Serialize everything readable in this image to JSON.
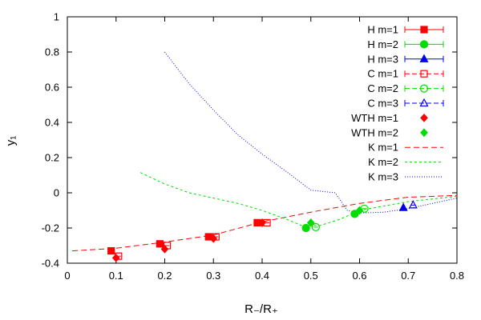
{
  "chart_data": {
    "type": "scatter",
    "title": "",
    "xlabel": "R₋/R₊",
    "ylabel": "y₁",
    "xlim": [
      0,
      0.8
    ],
    "ylim": [
      -0.4,
      1
    ],
    "xticks": [
      "0",
      "0.1",
      "0.2",
      "0.3",
      "0.4",
      "0.5",
      "0.6",
      "0.7",
      "0.8"
    ],
    "xtick_values": [
      0,
      0.1,
      0.2,
      0.3,
      0.4,
      0.5,
      0.6,
      0.7,
      0.8
    ],
    "yticks": [
      "-0.4",
      "-0.2",
      "0",
      "0.2",
      "0.4",
      "0.6",
      "0.8",
      "1"
    ],
    "ytick_values": [
      -0.4,
      -0.2,
      0,
      0.2,
      0.4,
      0.6,
      0.8,
      1
    ],
    "grid": false,
    "legend_position": "top-right",
    "colors": {
      "red": "#ff0000",
      "green": "#00dd00",
      "blue": "#0000ee"
    },
    "series": [
      {
        "name": "H m=1",
        "kind": "errorbar",
        "marker": "filled-square",
        "color": "#ff0000",
        "points": [
          {
            "x": 0.09,
            "y": -0.33
          },
          {
            "x": 0.19,
            "y": -0.29
          },
          {
            "x": 0.29,
            "y": -0.25
          },
          {
            "x": 0.39,
            "y": -0.17
          }
        ]
      },
      {
        "name": "H m=2",
        "kind": "errorbar",
        "marker": "filled-circle",
        "color": "#00dd00",
        "points": [
          {
            "x": 0.49,
            "y": -0.2
          },
          {
            "x": 0.59,
            "y": -0.12
          }
        ]
      },
      {
        "name": "H m=3",
        "kind": "errorbar",
        "marker": "filled-triangle",
        "color": "#0000ee",
        "points": [
          {
            "x": 0.69,
            "y": -0.085
          }
        ]
      },
      {
        "name": "C m=1",
        "kind": "errorbar",
        "marker": "open-square",
        "color": "#ff0000",
        "points": [
          {
            "x": 0.105,
            "y": -0.36
          },
          {
            "x": 0.205,
            "y": -0.3
          },
          {
            "x": 0.305,
            "y": -0.25
          },
          {
            "x": 0.41,
            "y": -0.17
          }
        ]
      },
      {
        "name": "C m=2",
        "kind": "errorbar",
        "marker": "open-circle",
        "color": "#00dd00",
        "points": [
          {
            "x": 0.51,
            "y": -0.195
          },
          {
            "x": 0.61,
            "y": -0.09
          }
        ]
      },
      {
        "name": "C m=3",
        "kind": "errorbar",
        "marker": "open-triangle",
        "color": "#0000ee",
        "points": [
          {
            "x": 0.71,
            "y": -0.07
          }
        ]
      },
      {
        "name": "WTH m=1",
        "kind": "points",
        "marker": "filled-diamond",
        "color": "#ff0000",
        "points": [
          {
            "x": 0.1,
            "y": -0.37
          },
          {
            "x": 0.2,
            "y": -0.32
          },
          {
            "x": 0.3,
            "y": -0.26
          },
          {
            "x": 0.4,
            "y": -0.17
          }
        ]
      },
      {
        "name": "WTH m=2",
        "kind": "points",
        "marker": "filled-diamond",
        "color": "#00dd00",
        "points": [
          {
            "x": 0.5,
            "y": -0.17
          },
          {
            "x": 0.6,
            "y": -0.1
          }
        ]
      },
      {
        "name": "K m=1",
        "kind": "line",
        "dash": "7,4",
        "color": "#ff0000",
        "points": [
          {
            "x": 0.01,
            "y": -0.33
          },
          {
            "x": 0.1,
            "y": -0.315
          },
          {
            "x": 0.2,
            "y": -0.28
          },
          {
            "x": 0.3,
            "y": -0.24
          },
          {
            "x": 0.4,
            "y": -0.165
          },
          {
            "x": 0.5,
            "y": -0.11
          },
          {
            "x": 0.6,
            "y": -0.06
          },
          {
            "x": 0.7,
            "y": -0.025
          },
          {
            "x": 0.8,
            "y": -0.015
          }
        ]
      },
      {
        "name": "K m=2",
        "kind": "line",
        "dash": "3,3",
        "color": "#00dd00",
        "points": [
          {
            "x": 0.15,
            "y": 0.115
          },
          {
            "x": 0.2,
            "y": 0.05
          },
          {
            "x": 0.25,
            "y": 0.0
          },
          {
            "x": 0.3,
            "y": -0.03
          },
          {
            "x": 0.35,
            "y": -0.06
          },
          {
            "x": 0.4,
            "y": -0.1
          },
          {
            "x": 0.45,
            "y": -0.15
          },
          {
            "x": 0.48,
            "y": -0.185
          },
          {
            "x": 0.52,
            "y": -0.185
          },
          {
            "x": 0.56,
            "y": -0.15
          },
          {
            "x": 0.6,
            "y": -0.1
          },
          {
            "x": 0.7,
            "y": -0.05
          },
          {
            "x": 0.8,
            "y": -0.02
          }
        ]
      },
      {
        "name": "K m=3",
        "kind": "line",
        "dash": "1,2",
        "color": "#0000ee",
        "points": [
          {
            "x": 0.2,
            "y": 0.8
          },
          {
            "x": 0.25,
            "y": 0.62
          },
          {
            "x": 0.3,
            "y": 0.47
          },
          {
            "x": 0.35,
            "y": 0.33
          },
          {
            "x": 0.4,
            "y": 0.22
          },
          {
            "x": 0.45,
            "y": 0.12
          },
          {
            "x": 0.5,
            "y": 0.015
          },
          {
            "x": 0.55,
            "y": 0.0
          },
          {
            "x": 0.575,
            "y": -0.1
          },
          {
            "x": 0.6,
            "y": -0.115
          },
          {
            "x": 0.65,
            "y": -0.11
          },
          {
            "x": 0.7,
            "y": -0.09
          },
          {
            "x": 0.75,
            "y": -0.06
          },
          {
            "x": 0.8,
            "y": -0.03
          }
        ]
      }
    ]
  }
}
